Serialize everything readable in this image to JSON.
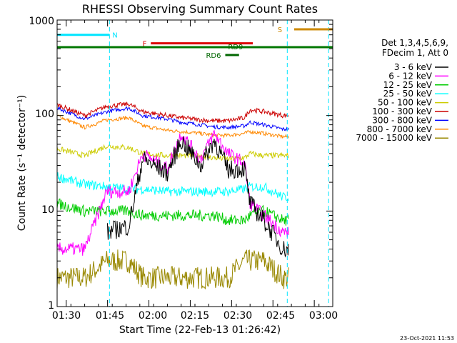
{
  "chart_data": {
    "type": "line",
    "title": "RHESSI Observing Summary Count Rates",
    "xlabel": "Start Time (22-Feb-13 01:26:42)",
    "ylabel": "Count Rate (s⁻¹ detector⁻¹)",
    "yscale": "log",
    "ylim": [
      1,
      1000
    ],
    "xlim_minutes": [
      0,
      100
    ],
    "x_ticks": [
      "01:30",
      "01:45",
      "02:00",
      "02:15",
      "02:30",
      "02:45",
      "03:00"
    ],
    "y_ticks": [
      "1",
      "10",
      "100",
      "1000"
    ],
    "timestamp": "23-Oct-2021 11:53",
    "legend_header": [
      "Det 1,3,4,5,6,9,",
      "FDecim 1, Att 0"
    ],
    "legend_position": "right",
    "series": [
      {
        "name": "3 - 6 keV",
        "color": "#000000"
      },
      {
        "name": "6 - 12 keV",
        "color": "#ff00ff"
      },
      {
        "name": "12 - 25 keV",
        "color": "#00cc00"
      },
      {
        "name": "25 - 50 keV",
        "color": "#00ffff"
      },
      {
        "name": "50 - 100 keV",
        "color": "#cccc00"
      },
      {
        "name": "100 - 300 keV",
        "color": "#cc0000"
      },
      {
        "name": "300 - 800 keV",
        "color": "#0000ff"
      },
      {
        "name": "800 - 7000 keV",
        "color": "#ff8800"
      },
      {
        "name": "7000 - 15000 keV",
        "color": "#998800"
      }
    ],
    "annotations": [
      {
        "label": "N",
        "color": "#00e5ff"
      },
      {
        "label": "F",
        "color": "#dd0000"
      },
      {
        "label": "RD6",
        "color": "#006600"
      },
      {
        "label": "RD9",
        "color": "#006600"
      },
      {
        "label": "S",
        "color": "#cc8800"
      }
    ],
    "approx_series_samples": {
      "note": "representative values read from gridlines; x in minutes after 01:26:42",
      "x": [
        0,
        10,
        18,
        26,
        31,
        40,
        45,
        52,
        57,
        62,
        68,
        70,
        75,
        82
      ],
      "3 - 6 keV": [
        null,
        null,
        6,
        7,
        35,
        25,
        55,
        30,
        55,
        27,
        28,
        12,
        8,
        4
      ],
      "6 - 12 keV": [
        4,
        4,
        16,
        16,
        40,
        28,
        65,
        35,
        65,
        40,
        32,
        12,
        9,
        6
      ],
      "12 - 25 keV": [
        12,
        10,
        10,
        10,
        9,
        9,
        9,
        9,
        9,
        8,
        8,
        9,
        10,
        8
      ],
      "25 - 50 keV": [
        23,
        19,
        18,
        17,
        17,
        16,
        16,
        16,
        16,
        16,
        17,
        18,
        18,
        14
      ],
      "50 - 100 keV": [
        45,
        38,
        48,
        46,
        40,
        38,
        38,
        38,
        36,
        35,
        36,
        40,
        38,
        38
      ],
      "100 - 300 keV": [
        130,
        100,
        125,
        132,
        110,
        100,
        95,
        90,
        88,
        88,
        95,
        115,
        110,
        100
      ],
      "300 - 800 keV": [
        120,
        92,
        110,
        120,
        100,
        92,
        85,
        80,
        76,
        75,
        78,
        85,
        80,
        72
      ],
      "800 - 7000 keV": [
        100,
        75,
        90,
        95,
        78,
        70,
        68,
        65,
        62,
        62,
        65,
        68,
        65,
        60
      ],
      "7000 - 15000 keV": [
        2,
        2,
        3,
        3,
        2,
        2,
        2,
        2,
        2,
        2,
        3,
        3,
        3,
        2
      ]
    }
  }
}
